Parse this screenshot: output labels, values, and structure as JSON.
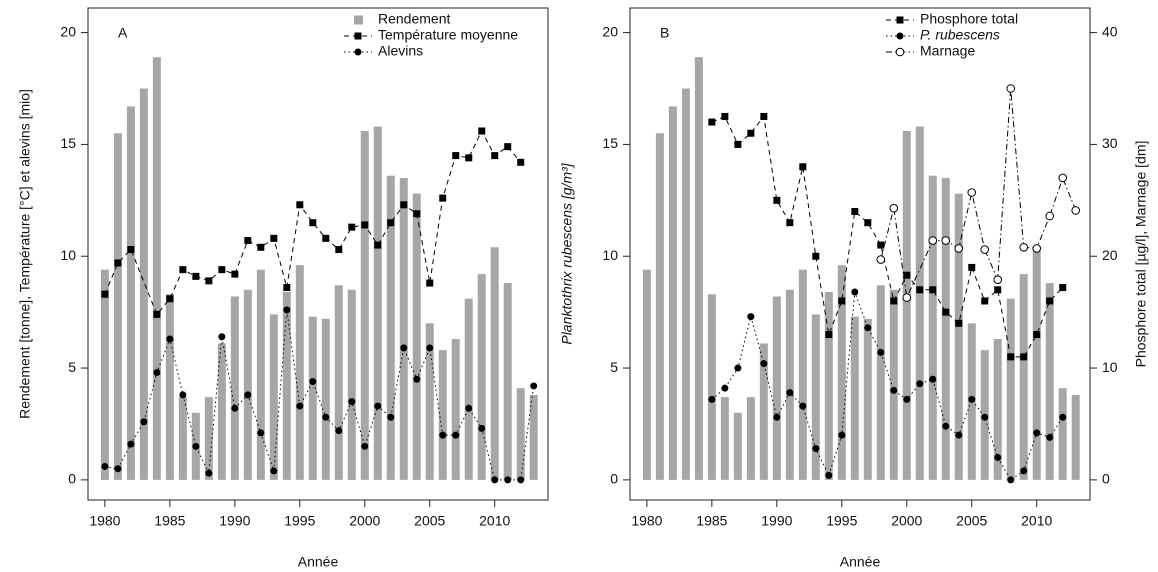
{
  "chart_data": [
    {
      "type": "bar",
      "title": "A",
      "x_label": "Année",
      "y_label": "Rendement [tonne], Température [°C] et alevins [mio]",
      "xlim": [
        1978.7,
        2014.1
      ],
      "xticks": [
        1980,
        1985,
        1990,
        1995,
        2000,
        2005,
        2010
      ],
      "ylim": [
        -0.9,
        21.1
      ],
      "yticks": [
        0,
        5,
        10,
        15,
        20
      ],
      "legend": "top-right",
      "series": [
        {
          "name": "Rendement",
          "type": "bar",
          "color": "#a6a6a6",
          "x": [
            1980,
            1981,
            1982,
            1983,
            1984,
            1985,
            1986,
            1987,
            1988,
            1989,
            1990,
            1991,
            1992,
            1993,
            1994,
            1995,
            1996,
            1997,
            1998,
            1999,
            2000,
            2001,
            2002,
            2003,
            2004,
            2005,
            2006,
            2007,
            2008,
            2009,
            2010,
            2011,
            2012,
            2013
          ],
          "values": [
            9.4,
            15.5,
            16.7,
            17.5,
            18.9,
            8.3,
            3.7,
            3.0,
            3.7,
            6.1,
            8.2,
            8.5,
            9.4,
            7.4,
            8.4,
            9.6,
            7.3,
            7.2,
            8.7,
            8.5,
            15.6,
            15.8,
            13.6,
            13.5,
            12.8,
            7.0,
            5.8,
            6.3,
            8.1,
            9.2,
            10.4,
            8.8,
            4.1,
            3.8
          ]
        },
        {
          "name": "Température moyenne",
          "type": "line",
          "color": "#000000",
          "marker": "square",
          "dash": "dashed",
          "x": [
            1980,
            1981,
            1982,
            1984,
            1985,
            1986,
            1987,
            1988,
            1989,
            1990,
            1991,
            1992,
            1993,
            1994,
            1995,
            1996,
            1997,
            1998,
            1999,
            2000,
            2001,
            2002,
            2003,
            2004,
            2005,
            2006,
            2007,
            2008,
            2009,
            2010,
            2011,
            2012
          ],
          "values": [
            8.3,
            9.7,
            10.3,
            7.4,
            8.1,
            9.4,
            9.1,
            8.9,
            9.4,
            9.2,
            10.7,
            10.4,
            10.8,
            8.6,
            12.3,
            11.5,
            10.8,
            10.3,
            11.3,
            11.4,
            10.5,
            11.5,
            12.3,
            11.9,
            8.8,
            12.6,
            14.5,
            14.4,
            15.6,
            14.5,
            14.9,
            14.2
          ]
        },
        {
          "name": "Alevins",
          "type": "line",
          "color": "#000000",
          "marker": "circle",
          "dash": "dotted",
          "x": [
            1980,
            1981,
            1982,
            1983,
            1984,
            1985,
            1986,
            1987,
            1988,
            1989,
            1990,
            1991,
            1992,
            1993,
            1994,
            1995,
            1996,
            1997,
            1998,
            1999,
            2000,
            2001,
            2002,
            2003,
            2004,
            2005,
            2006,
            2007,
            2008,
            2009,
            2010,
            2011,
            2012,
            2013
          ],
          "values": [
            0.6,
            0.5,
            1.6,
            2.6,
            4.8,
            6.3,
            3.8,
            1.5,
            0.3,
            6.4,
            3.2,
            3.8,
            2.1,
            0.4,
            7.6,
            3.3,
            4.4,
            2.8,
            2.2,
            3.5,
            1.5,
            3.3,
            2.8,
            5.9,
            4.5,
            5.9,
            2.0,
            2.0,
            3.2,
            2.3,
            0,
            0,
            0,
            4.2
          ]
        }
      ]
    },
    {
      "type": "bar",
      "title": "B",
      "x_label": "Année",
      "y_label": "Planktothrix rubescens [g/m³]",
      "y2_label": "Phosphore total [µg/l], Marnage [dm]",
      "xlim": [
        1978.7,
        2014.1
      ],
      "xticks": [
        1980,
        1985,
        1990,
        1995,
        2000,
        2005,
        2010
      ],
      "ylim": [
        -0.9,
        21.1
      ],
      "yticks": [
        0,
        5,
        10,
        15,
        20
      ],
      "y2lim": [
        -1.8,
        42.2
      ],
      "y2ticks": [
        0,
        10,
        20,
        30,
        40
      ],
      "legend": "top-right",
      "series": [
        {
          "type": "bar",
          "color": "#a6a6a6",
          "x": [
            1980,
            1981,
            1982,
            1983,
            1984,
            1985,
            1986,
            1987,
            1988,
            1989,
            1990,
            1991,
            1992,
            1993,
            1994,
            1995,
            1996,
            1997,
            1998,
            1999,
            2000,
            2001,
            2002,
            2003,
            2004,
            2005,
            2006,
            2007,
            2008,
            2009,
            2010,
            2011,
            2012,
            2013
          ],
          "values": [
            9.4,
            15.5,
            16.7,
            17.5,
            18.9,
            8.3,
            3.7,
            3.0,
            3.7,
            6.1,
            8.2,
            8.5,
            9.4,
            7.4,
            8.4,
            9.6,
            7.3,
            7.2,
            8.7,
            8.5,
            15.6,
            15.8,
            13.6,
            13.5,
            12.8,
            7.0,
            5.8,
            6.3,
            8.1,
            9.2,
            10.4,
            8.8,
            4.1,
            3.8
          ]
        },
        {
          "name": "Phosphore total",
          "type": "line",
          "axis": "y2",
          "color": "#000000",
          "marker": "square",
          "dash": "dashed",
          "x": [
            1985,
            1986,
            1987,
            1988,
            1989,
            1990,
            1991,
            1992,
            1993,
            1994,
            1995,
            1996,
            1997,
            1998,
            1999,
            2000,
            2001,
            2002,
            2003,
            2004,
            2005,
            2006,
            2007,
            2008,
            2009,
            2010,
            2011,
            2012
          ],
          "values": [
            32,
            32.5,
            30,
            31,
            32.5,
            25,
            23,
            28,
            20,
            13,
            16,
            24,
            23,
            21,
            16,
            18.3,
            17,
            17,
            15,
            14,
            19,
            16,
            17,
            11,
            11,
            13,
            16,
            17.2
          ]
        },
        {
          "name": "P. rubescens",
          "type": "line",
          "color": "#000000",
          "marker": "circle",
          "dash": "dotted",
          "x": [
            1985,
            1986,
            1987,
            1988,
            1989,
            1990,
            1991,
            1992,
            1993,
            1994,
            1995,
            1996,
            1997,
            1998,
            1999,
            2000,
            2001,
            2002,
            2003,
            2004,
            2005,
            2006,
            2007,
            2008,
            2009,
            2010,
            2011,
            2012
          ],
          "values": [
            3.6,
            4.1,
            5.0,
            7.3,
            5.2,
            2.8,
            3.9,
            3.3,
            1.4,
            0.2,
            2.0,
            8.4,
            6.8,
            5.7,
            4.0,
            3.6,
            4.3,
            4.5,
            2.4,
            2.0,
            3.6,
            2.8,
            1.0,
            0,
            0.4,
            2.1,
            1.9,
            2.8
          ]
        },
        {
          "name": "Marnage",
          "type": "line",
          "axis": "y2",
          "color": "#000000",
          "marker": "open-circle",
          "dash": "dashdot",
          "x": [
            1998,
            1999,
            2000,
            2002,
            2003,
            2004,
            2005,
            2006,
            2007,
            2008,
            2009,
            2010,
            2011,
            2012,
            2013
          ],
          "values": [
            19.7,
            24.3,
            16.3,
            21.4,
            21.4,
            20.7,
            25.7,
            20.6,
            17.9,
            35,
            20.8,
            20.7,
            23.6,
            27,
            24.1
          ]
        }
      ]
    }
  ]
}
